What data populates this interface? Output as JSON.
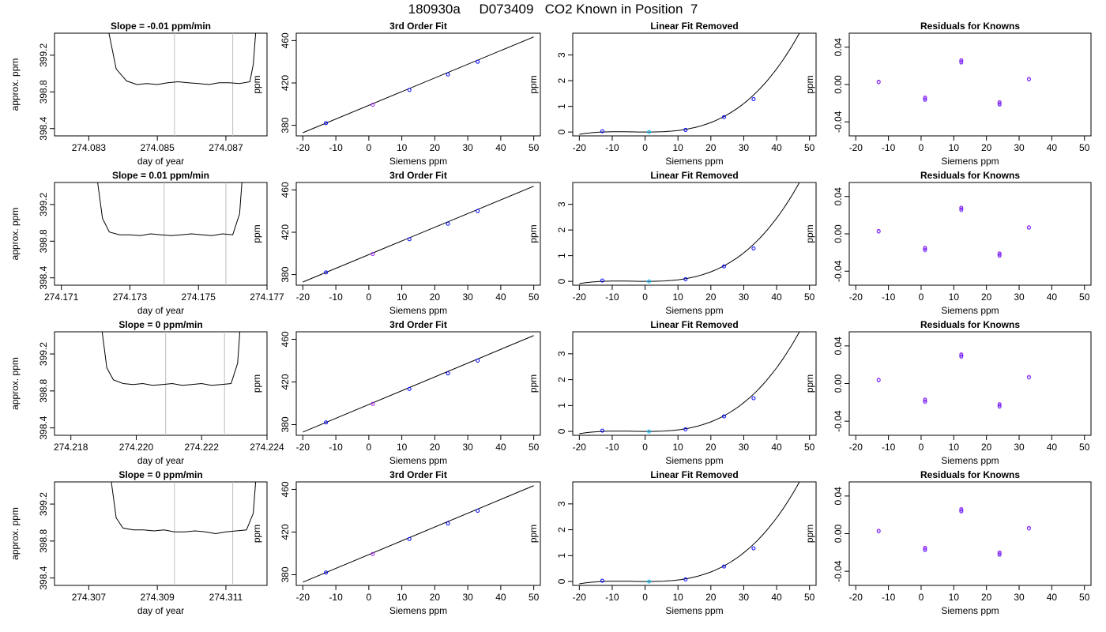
{
  "figure": {
    "title": "180930a     D073409   CO2 Known in Position  7",
    "colors": {
      "line": "#000000",
      "vline": "#bebebe",
      "pt_blue": "#0000ff",
      "pt_purple": "#a020f0",
      "pt_cyan": "#00bfff",
      "pt_red": "#ff0000"
    }
  },
  "chart_data": [
    {
      "type": "line",
      "panel": "trace",
      "row": 1,
      "title": "Slope =  -0.01  ppm/min",
      "xlabel": "day of year",
      "ylabel": "approx. ppm",
      "xlim": [
        274.082,
        274.0882
      ],
      "ylim": [
        398.32,
        399.44
      ],
      "xticks": [
        274.083,
        274.085,
        274.087
      ],
      "xtick_labels": [
        "274.083",
        "274.085",
        "274.087"
      ],
      "yticks": [
        398.4,
        398.8,
        399.2
      ],
      "ytick_labels": [
        "398.4",
        "398.8",
        "399.2"
      ],
      "vlines": [
        274.0855,
        274.0872
      ],
      "x": [
        274.0835,
        274.0838,
        274.0841,
        274.0844,
        274.0847,
        274.085,
        274.0853,
        274.0856,
        274.0859,
        274.0862,
        274.0865,
        274.0868,
        274.0871,
        274.0874,
        274.0877,
        274.0878,
        274.0879
      ],
      "y": [
        399.6,
        399.05,
        398.92,
        398.88,
        398.89,
        398.88,
        398.9,
        398.91,
        398.9,
        398.89,
        398.88,
        398.9,
        398.9,
        398.89,
        398.91,
        399.1,
        399.6
      ]
    },
    {
      "type": "scatter",
      "panel": "fit",
      "row": 1,
      "title": "3rd Order Fit",
      "xlabel": "Siemens ppm",
      "ylabel": "ppm",
      "xlim": [
        -22,
        52
      ],
      "ylim": [
        370,
        467
      ],
      "xticks": [
        -20,
        -10,
        0,
        10,
        20,
        30,
        40,
        50
      ],
      "yticks": [
        380,
        420,
        460
      ],
      "curve_x": [
        -20,
        50
      ],
      "curve_y": [
        373,
        463.5
      ],
      "points": [
        {
          "x": -13,
          "y": 382
        },
        {
          "x": 1.2,
          "y": 399.4
        },
        {
          "x": 12.3,
          "y": 413.4
        },
        {
          "x": 24,
          "y": 428
        },
        {
          "x": 33,
          "y": 440
        }
      ]
    },
    {
      "type": "scatter",
      "panel": "linear_removed",
      "row": 1,
      "title": "Linear Fit Removed",
      "xlabel": "Siemens ppm",
      "ylabel": "ppm",
      "xlim": [
        -22,
        52
      ],
      "ylim": [
        -0.15,
        3.85
      ],
      "xticks": [
        -20,
        -10,
        0,
        10,
        20,
        30,
        40,
        50
      ],
      "yticks": [
        0,
        1,
        2,
        3
      ],
      "curve_coef": [
        0.0,
        -0.0005,
        0.00035,
        3e-05
      ],
      "points": [
        {
          "x": -13,
          "y": 0.03
        },
        {
          "x": 1.2,
          "y": 0.0
        },
        {
          "x": 12.3,
          "y": 0.08
        },
        {
          "x": 24,
          "y": 0.58
        },
        {
          "x": 33,
          "y": 1.28
        }
      ]
    },
    {
      "type": "scatter",
      "panel": "residuals",
      "row": 1,
      "title": "Residuals for Knowns",
      "xlabel": "Siemens ppm",
      "ylabel": "ppm",
      "xlim": [
        -22,
        52
      ],
      "ylim": [
        -0.055,
        0.055
      ],
      "xticks": [
        -20,
        -10,
        0,
        10,
        20,
        30,
        40,
        50
      ],
      "yticks": [
        -0.04,
        0.0,
        0.04
      ],
      "ytick_labels": [
        "-0.04",
        "0.00",
        "0.04"
      ],
      "points": [
        {
          "x": -13,
          "y": 0.003
        },
        {
          "x": 1.2,
          "y": -0.014
        },
        {
          "x": 1.2,
          "y": -0.016
        },
        {
          "x": 12.3,
          "y": 0.024
        },
        {
          "x": 12.3,
          "y": 0.026
        },
        {
          "x": 24,
          "y": -0.019
        },
        {
          "x": 24,
          "y": -0.021
        },
        {
          "x": 33,
          "y": 0.006
        }
      ]
    },
    {
      "type": "line",
      "panel": "trace",
      "row": 2,
      "title": "Slope =  0.01  ppm/min",
      "xlabel": "day of year",
      "ylabel": "approx. ppm",
      "xlim": [
        274.1708,
        274.177
      ],
      "ylim": [
        398.32,
        399.44
      ],
      "xticks": [
        274.171,
        274.173,
        274.175,
        274.177
      ],
      "xtick_labels": [
        "274.171",
        "274.173",
        "274.175",
        "274.177"
      ],
      "yticks": [
        398.4,
        398.8,
        399.2
      ],
      "ytick_labels": [
        "398.4",
        "398.8",
        "399.2"
      ],
      "vlines": [
        274.174,
        274.1758
      ],
      "x": [
        274.172,
        274.1722,
        274.1724,
        274.1727,
        274.173,
        274.1733,
        274.1736,
        274.1739,
        274.1742,
        274.1745,
        274.1748,
        274.1751,
        274.1754,
        274.1757,
        274.176,
        274.1762,
        274.1763
      ],
      "y": [
        399.6,
        399.05,
        398.9,
        398.87,
        398.87,
        398.86,
        398.88,
        398.87,
        398.86,
        398.87,
        398.88,
        398.87,
        398.86,
        398.88,
        398.87,
        399.1,
        399.6
      ]
    },
    {
      "type": "scatter",
      "panel": "fit",
      "row": 2,
      "title": "3rd Order Fit",
      "xlabel": "Siemens ppm",
      "ylabel": "ppm",
      "xlim": [
        -22,
        52
      ],
      "ylim": [
        370,
        467
      ],
      "xticks": [
        -20,
        -10,
        0,
        10,
        20,
        30,
        40,
        50
      ],
      "yticks": [
        380,
        420,
        460
      ],
      "curve_x": [
        -20,
        50
      ],
      "curve_y": [
        373,
        463.5
      ],
      "points": [
        {
          "x": -13,
          "y": 382
        },
        {
          "x": 1.2,
          "y": 399.4
        },
        {
          "x": 12.3,
          "y": 413.4
        },
        {
          "x": 24,
          "y": 428
        },
        {
          "x": 33,
          "y": 440
        }
      ]
    },
    {
      "type": "scatter",
      "panel": "linear_removed",
      "row": 2,
      "title": "Linear Fit Removed",
      "xlabel": "Siemens ppm",
      "ylabel": "ppm",
      "xlim": [
        -22,
        52
      ],
      "ylim": [
        -0.15,
        3.85
      ],
      "xticks": [
        -20,
        -10,
        0,
        10,
        20,
        30,
        40,
        50
      ],
      "yticks": [
        0,
        1,
        2,
        3
      ],
      "curve_coef": [
        0.0,
        -0.0005,
        0.00035,
        3e-05
      ],
      "points": [
        {
          "x": -13,
          "y": 0.03
        },
        {
          "x": 1.2,
          "y": 0.0
        },
        {
          "x": 12.3,
          "y": 0.08
        },
        {
          "x": 24,
          "y": 0.58
        },
        {
          "x": 33,
          "y": 1.28
        }
      ]
    },
    {
      "type": "scatter",
      "panel": "residuals",
      "row": 2,
      "title": "Residuals for Knowns",
      "xlabel": "Siemens ppm",
      "ylabel": "ppm",
      "xlim": [
        -22,
        52
      ],
      "ylim": [
        -0.055,
        0.055
      ],
      "xticks": [
        -20,
        -10,
        0,
        10,
        20,
        30,
        40,
        50
      ],
      "yticks": [
        -0.04,
        0.0,
        0.04
      ],
      "ytick_labels": [
        "-0.04",
        "0.00",
        "0.04"
      ],
      "points": [
        {
          "x": -13,
          "y": 0.003
        },
        {
          "x": 1.2,
          "y": -0.015
        },
        {
          "x": 1.2,
          "y": -0.017
        },
        {
          "x": 12.3,
          "y": 0.026
        },
        {
          "x": 12.3,
          "y": 0.028
        },
        {
          "x": 24,
          "y": -0.021
        },
        {
          "x": 24,
          "y": -0.023
        },
        {
          "x": 33,
          "y": 0.007
        }
      ]
    },
    {
      "type": "line",
      "panel": "trace",
      "row": 3,
      "title": "Slope =  0  ppm/min",
      "xlabel": "day of year",
      "ylabel": "approx. ppm",
      "xlim": [
        274.2175,
        274.224
      ],
      "ylim": [
        398.32,
        399.44
      ],
      "xticks": [
        274.218,
        274.22,
        274.222,
        274.224
      ],
      "xtick_labels": [
        "274.218",
        "274.220",
        "274.222",
        "274.224"
      ],
      "yticks": [
        398.4,
        398.8,
        399.2
      ],
      "ytick_labels": [
        "398.4",
        "398.8",
        "399.2"
      ],
      "vlines": [
        274.2209,
        274.2227
      ],
      "x": [
        274.2189,
        274.2191,
        274.2193,
        274.2196,
        274.2199,
        274.2202,
        274.2205,
        274.2208,
        274.2211,
        274.2214,
        274.2217,
        274.222,
        274.2223,
        274.2226,
        274.2229,
        274.2231,
        274.2232
      ],
      "y": [
        399.6,
        399.05,
        398.92,
        398.88,
        398.87,
        398.88,
        398.86,
        398.87,
        398.88,
        398.86,
        398.87,
        398.88,
        398.86,
        398.87,
        398.88,
        399.1,
        399.6
      ]
    },
    {
      "type": "scatter",
      "panel": "fit",
      "row": 3,
      "title": "3rd Order Fit",
      "xlabel": "Siemens ppm",
      "ylabel": "ppm",
      "xlim": [
        -22,
        52
      ],
      "ylim": [
        370,
        467
      ],
      "xticks": [
        -20,
        -10,
        0,
        10,
        20,
        30,
        40,
        50
      ],
      "yticks": [
        380,
        420,
        460
      ],
      "curve_x": [
        -20,
        50
      ],
      "curve_y": [
        373,
        463.5
      ],
      "points": [
        {
          "x": -13,
          "y": 382
        },
        {
          "x": 1.2,
          "y": 399.4
        },
        {
          "x": 12.3,
          "y": 413.4
        },
        {
          "x": 24,
          "y": 428
        },
        {
          "x": 33,
          "y": 440
        }
      ]
    },
    {
      "type": "scatter",
      "panel": "linear_removed",
      "row": 3,
      "title": "Linear Fit Removed",
      "xlabel": "Siemens ppm",
      "ylabel": "ppm",
      "xlim": [
        -22,
        52
      ],
      "ylim": [
        -0.15,
        3.85
      ],
      "xticks": [
        -20,
        -10,
        0,
        10,
        20,
        30,
        40,
        50
      ],
      "yticks": [
        0,
        1,
        2,
        3
      ],
      "curve_coef": [
        0.0,
        -0.0005,
        0.00035,
        3e-05
      ],
      "points": [
        {
          "x": -13,
          "y": 0.03
        },
        {
          "x": 1.2,
          "y": 0.0
        },
        {
          "x": 12.3,
          "y": 0.08
        },
        {
          "x": 24,
          "y": 0.58
        },
        {
          "x": 33,
          "y": 1.28
        }
      ]
    },
    {
      "type": "scatter",
      "panel": "residuals",
      "row": 3,
      "title": "Residuals for Knowns",
      "xlabel": "Siemens ppm",
      "ylabel": "ppm",
      "xlim": [
        -22,
        52
      ],
      "ylim": [
        -0.055,
        0.055
      ],
      "xticks": [
        -20,
        -10,
        0,
        10,
        20,
        30,
        40,
        50
      ],
      "yticks": [
        -0.04,
        0.0,
        0.04
      ],
      "ytick_labels": [
        "-0.04",
        "0.00",
        "0.04"
      ],
      "points": [
        {
          "x": -13,
          "y": 0.004
        },
        {
          "x": 1.2,
          "y": -0.017
        },
        {
          "x": 1.2,
          "y": -0.019
        },
        {
          "x": 12.3,
          "y": 0.029
        },
        {
          "x": 12.3,
          "y": 0.031
        },
        {
          "x": 24,
          "y": -0.022
        },
        {
          "x": 24,
          "y": -0.024
        },
        {
          "x": 33,
          "y": 0.007
        }
      ]
    },
    {
      "type": "line",
      "panel": "trace",
      "row": 4,
      "title": "Slope =  0  ppm/min",
      "xlabel": "day of year",
      "ylabel": "approx. ppm",
      "xlim": [
        274.306,
        274.3122
      ],
      "ylim": [
        398.32,
        399.44
      ],
      "xticks": [
        274.307,
        274.309,
        274.311
      ],
      "xtick_labels": [
        "274.307",
        "274.309",
        "274.311"
      ],
      "yticks": [
        398.4,
        398.8,
        399.2
      ],
      "ytick_labels": [
        "398.4",
        "398.8",
        "399.2"
      ],
      "vlines": [
        274.3095,
        274.3112
      ],
      "x": [
        274.3076,
        274.3078,
        274.308,
        274.3083,
        274.3086,
        274.3089,
        274.3092,
        274.3095,
        274.3098,
        274.3101,
        274.3104,
        274.3107,
        274.311,
        274.3113,
        274.3116,
        274.3118,
        274.3119
      ],
      "y": [
        399.6,
        399.05,
        398.94,
        398.92,
        398.92,
        398.91,
        398.92,
        398.9,
        398.9,
        398.91,
        398.9,
        398.88,
        398.9,
        398.91,
        398.92,
        399.1,
        399.6
      ]
    },
    {
      "type": "scatter",
      "panel": "fit",
      "row": 4,
      "title": "3rd Order Fit",
      "xlabel": "Siemens ppm",
      "ylabel": "ppm",
      "xlim": [
        -22,
        52
      ],
      "ylim": [
        370,
        467
      ],
      "xticks": [
        -20,
        -10,
        0,
        10,
        20,
        30,
        40,
        50
      ],
      "yticks": [
        380,
        420,
        460
      ],
      "curve_x": [
        -20,
        50
      ],
      "curve_y": [
        373,
        463.5
      ],
      "points": [
        {
          "x": -13,
          "y": 382
        },
        {
          "x": 1.2,
          "y": 399.4
        },
        {
          "x": 12.3,
          "y": 413.4
        },
        {
          "x": 24,
          "y": 428
        },
        {
          "x": 33,
          "y": 440
        }
      ]
    },
    {
      "type": "scatter",
      "panel": "linear_removed",
      "row": 4,
      "title": "Linear Fit Removed",
      "xlabel": "Siemens ppm",
      "ylabel": "ppm",
      "xlim": [
        -22,
        52
      ],
      "ylim": [
        -0.15,
        3.85
      ],
      "xticks": [
        -20,
        -10,
        0,
        10,
        20,
        30,
        40,
        50
      ],
      "yticks": [
        0,
        1,
        2,
        3
      ],
      "curve_coef": [
        0.0,
        -0.0005,
        0.00035,
        3e-05
      ],
      "points": [
        {
          "x": -13,
          "y": 0.03
        },
        {
          "x": 1.2,
          "y": 0.0
        },
        {
          "x": 12.3,
          "y": 0.08
        },
        {
          "x": 24,
          "y": 0.58
        },
        {
          "x": 33,
          "y": 1.28
        }
      ]
    },
    {
      "type": "scatter",
      "panel": "residuals",
      "row": 4,
      "title": "Residuals for Knowns",
      "xlabel": "Siemens ppm",
      "ylabel": "ppm",
      "xlim": [
        -22,
        52
      ],
      "ylim": [
        -0.055,
        0.055
      ],
      "xticks": [
        -20,
        -10,
        0,
        10,
        20,
        30,
        40,
        50
      ],
      "yticks": [
        -0.04,
        0.0,
        0.04
      ],
      "ytick_labels": [
        "-0.04",
        "0.00",
        "0.04"
      ],
      "points": [
        {
          "x": -13,
          "y": 0.003
        },
        {
          "x": 1.2,
          "y": -0.015
        },
        {
          "x": 1.2,
          "y": -0.017
        },
        {
          "x": 12.3,
          "y": 0.024
        },
        {
          "x": 12.3,
          "y": 0.026
        },
        {
          "x": 24,
          "y": -0.02
        },
        {
          "x": 24,
          "y": -0.022
        },
        {
          "x": 33,
          "y": 0.006
        }
      ]
    }
  ]
}
